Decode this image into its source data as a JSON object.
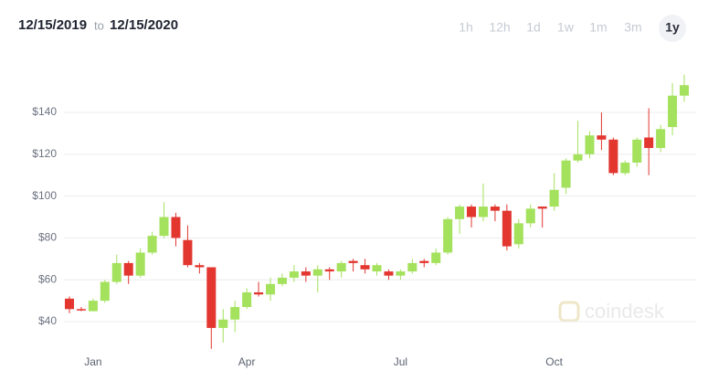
{
  "chart_data": {
    "type": "candlestick",
    "range_start": "12/15/2019",
    "range_separator": "to",
    "range_end": "12/15/2020",
    "timeframes": [
      {
        "label": "1h",
        "active": false
      },
      {
        "label": "12h",
        "active": false
      },
      {
        "label": "1d",
        "active": false
      },
      {
        "label": "1w",
        "active": false
      },
      {
        "label": "1m",
        "active": false
      },
      {
        "label": "3m",
        "active": false
      },
      {
        "label": "1y",
        "active": true
      }
    ],
    "watermark": "coindesk",
    "categories": [
      null,
      null,
      "Jan",
      null,
      null,
      null,
      null,
      null,
      null,
      null,
      null,
      null,
      null,
      null,
      null,
      "Apr",
      null,
      null,
      null,
      null,
      null,
      null,
      null,
      null,
      null,
      null,
      null,
      null,
      "Jul",
      null,
      null,
      null,
      null,
      null,
      null,
      null,
      null,
      null,
      null,
      null,
      null,
      "Oct",
      null,
      null,
      null,
      null,
      null,
      null,
      null,
      null,
      null,
      null,
      null
    ],
    "open": [
      51,
      46,
      45,
      50,
      59,
      68,
      62,
      73,
      81,
      90,
      79,
      67,
      66,
      37,
      41,
      47,
      54,
      53,
      58,
      61,
      64,
      62,
      65,
      64,
      69,
      67,
      64,
      64,
      62,
      64,
      69,
      68,
      73,
      89,
      95,
      90,
      95,
      93,
      77,
      87,
      95,
      95,
      104,
      117,
      120,
      129,
      127,
      111,
      116,
      128,
      123,
      133,
      148
    ],
    "high": [
      52,
      47,
      51,
      60,
      72,
      69,
      75,
      83,
      97,
      92,
      86,
      68,
      66,
      46,
      50,
      56,
      59,
      61,
      63,
      67,
      66,
      67,
      66,
      69,
      70,
      70,
      68,
      65,
      65,
      70,
      70,
      75,
      90,
      96,
      96,
      106,
      96,
      96,
      89,
      96,
      95,
      111,
      118,
      136,
      131,
      140,
      128,
      117,
      128,
      142,
      134,
      154,
      158
    ],
    "low": [
      44,
      45,
      45,
      49,
      58,
      58,
      61,
      72,
      80,
      76,
      66,
      63,
      27,
      30,
      35,
      46,
      52,
      50,
      57,
      59,
      59,
      54,
      60,
      61,
      64,
      63,
      62,
      60,
      60,
      63,
      66,
      67,
      72,
      82,
      85,
      88,
      88,
      74,
      75,
      85,
      85,
      93,
      101,
      116,
      118,
      122,
      110,
      110,
      114,
      110,
      121,
      129,
      145
    ],
    "close": [
      46,
      45.5,
      50,
      59,
      68,
      62,
      73,
      81,
      90,
      80,
      67,
      66,
      37,
      41,
      47,
      54,
      53,
      58,
      61,
      64,
      62,
      65,
      64,
      68,
      68,
      65,
      67,
      62,
      64,
      68,
      68,
      73,
      89,
      95,
      90,
      95,
      93,
      76,
      87,
      94,
      94,
      103,
      117,
      120,
      129,
      127,
      111,
      116,
      127,
      123,
      132,
      148,
      153
    ],
    "up_color": "#a4e15c",
    "down_color": "#e2362f",
    "ylim": [
      25,
      160
    ],
    "yticks": [
      {
        "value": 40,
        "label": "$40"
      },
      {
        "value": 60,
        "label": "$60"
      },
      {
        "value": 80,
        "label": "$80"
      },
      {
        "value": 100,
        "label": "$100"
      },
      {
        "value": 120,
        "label": "$120"
      },
      {
        "value": 140,
        "label": "$140"
      }
    ],
    "grid": true
  }
}
